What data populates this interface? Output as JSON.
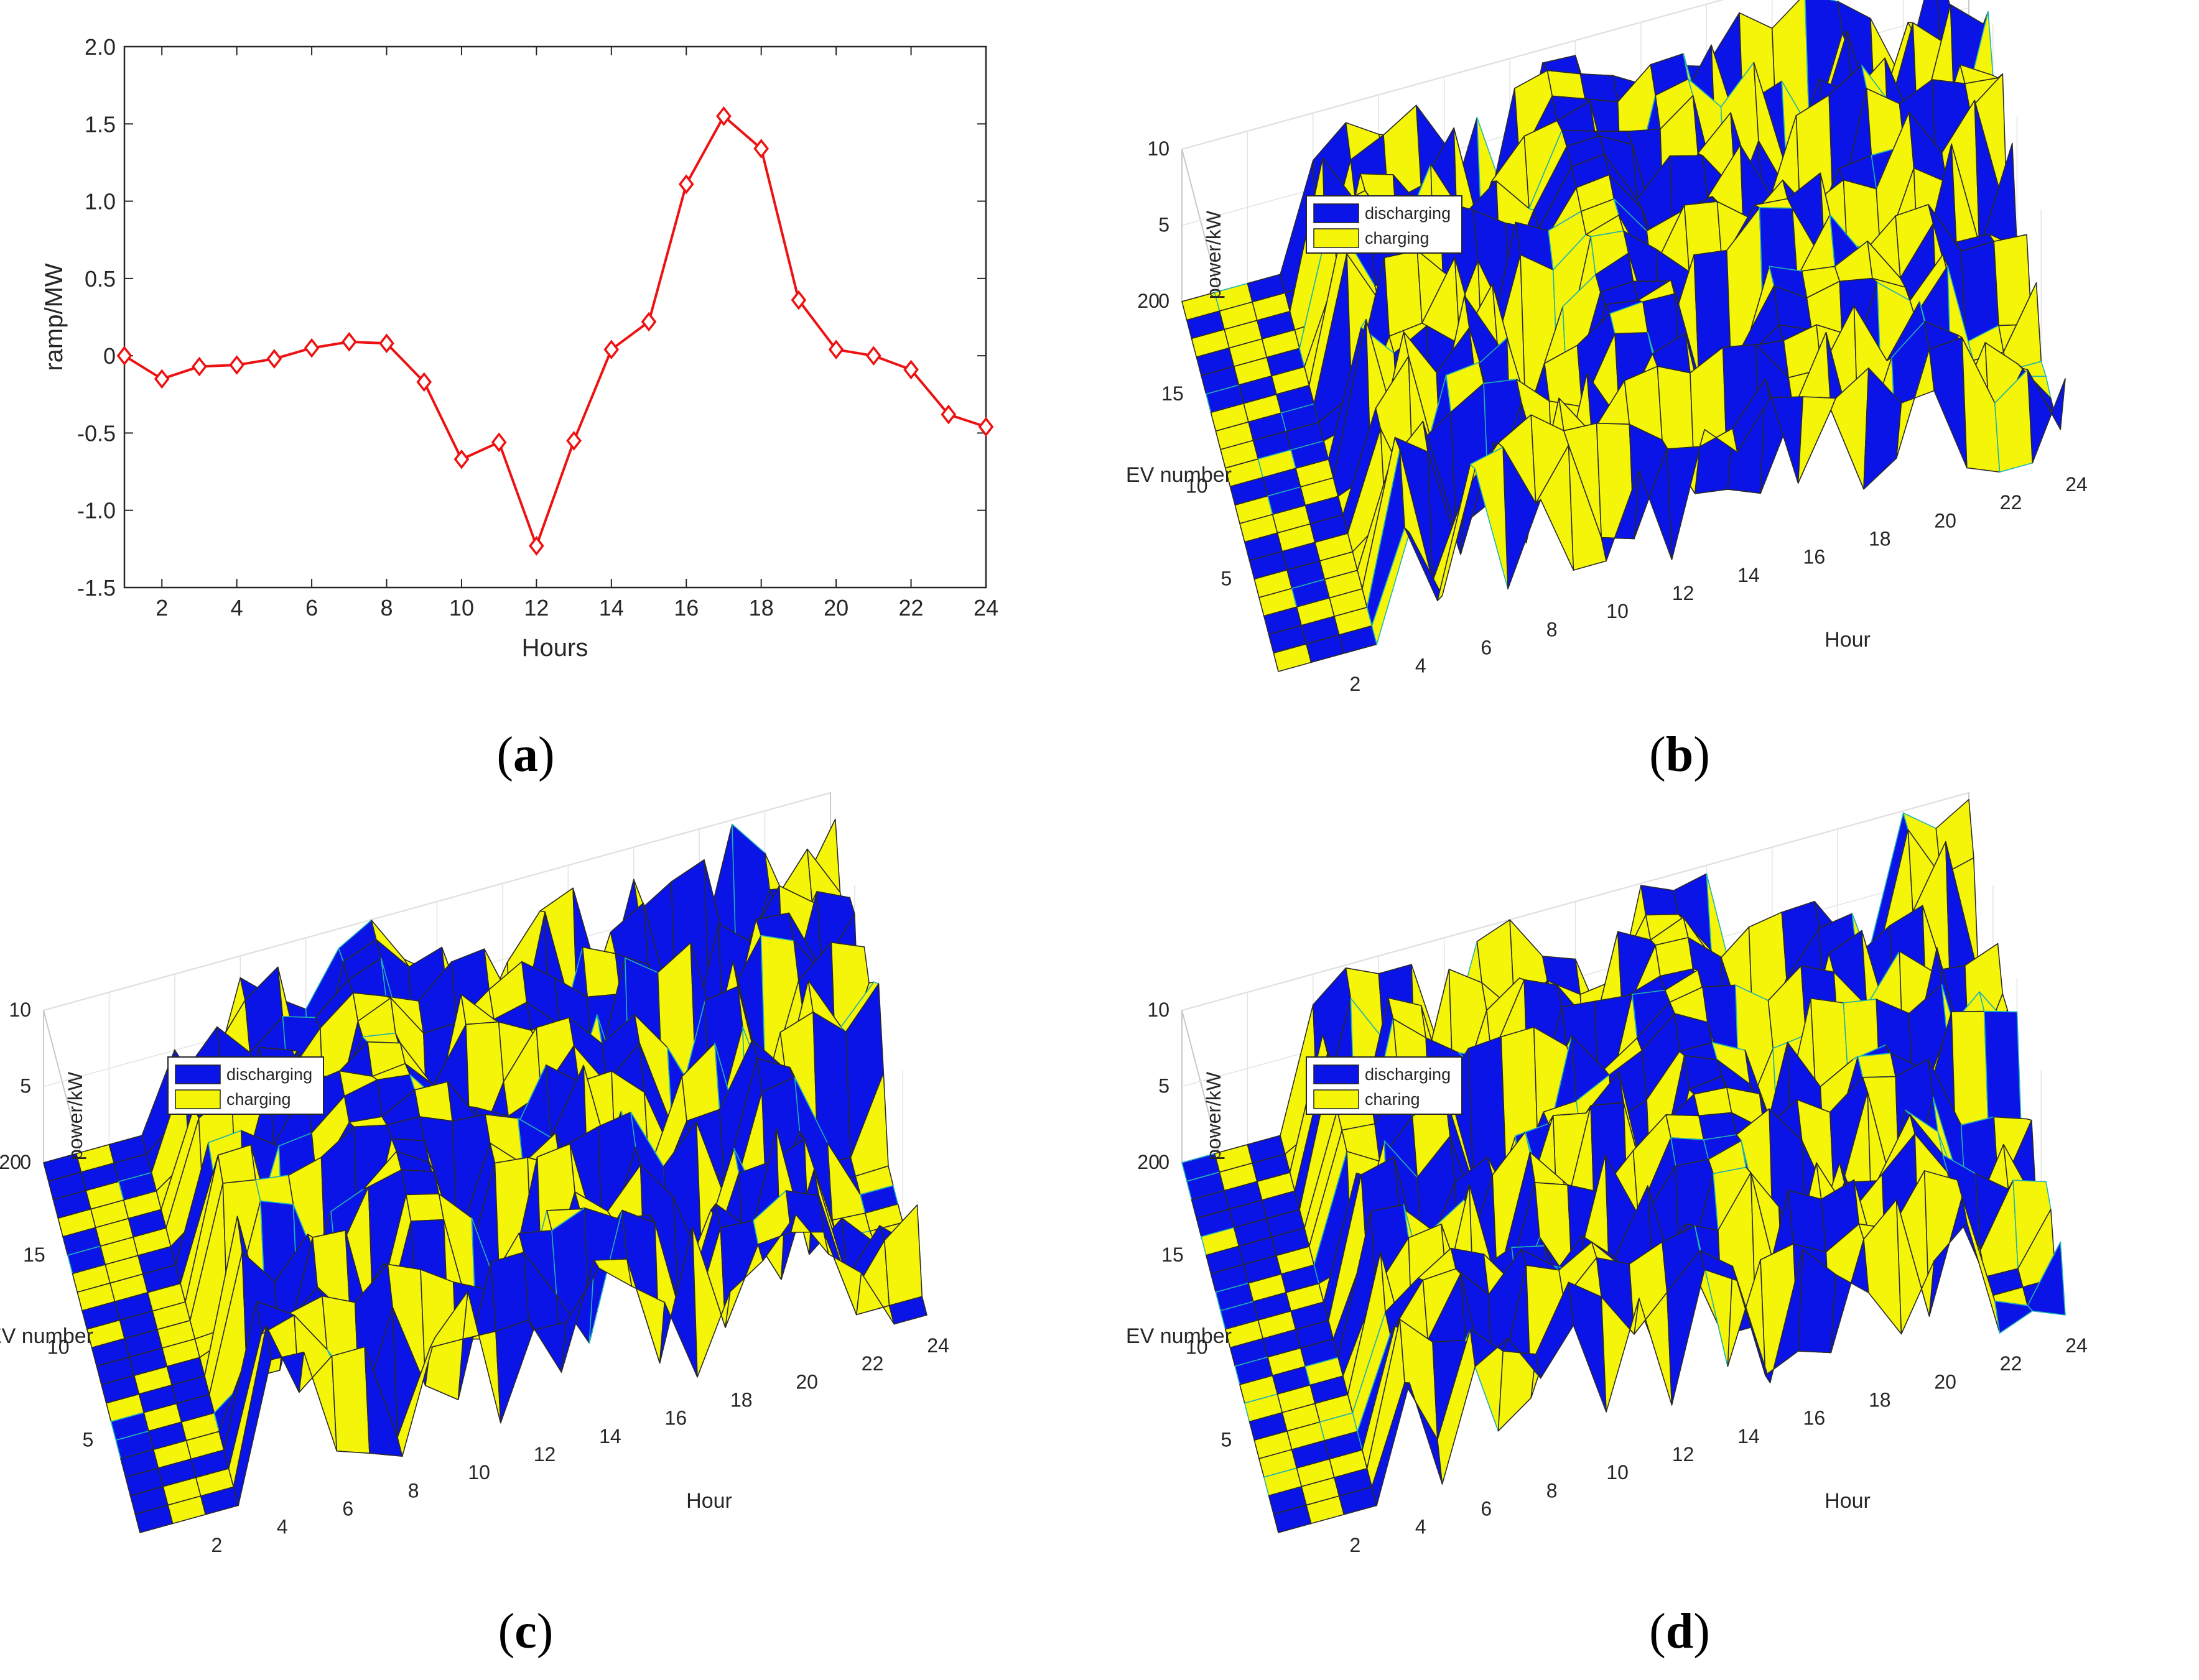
{
  "panel_a": {
    "caption": "(a)",
    "caption_letter": "a",
    "xlabel": "Hours",
    "ylabel": "ramp/MW"
  },
  "panel_b": {
    "caption": "(b)",
    "caption_letter": "b",
    "zlabel": "power/kW",
    "ylabel": "EV number",
    "xlabel": "Hour",
    "legend": [
      "discharging",
      "charging"
    ]
  },
  "panel_c": {
    "caption": "(c)",
    "caption_letter": "c",
    "zlabel": "power/kW",
    "ylabel": "EV number",
    "xlabel": "Hour",
    "legend": [
      "discharging",
      "charging"
    ]
  },
  "panel_d": {
    "caption": "(d)",
    "caption_letter": "d",
    "zlabel": "power/kW",
    "ylabel": "EV number",
    "xlabel": "Hour",
    "legend": [
      "discharging",
      "charing"
    ]
  },
  "colors": {
    "line": "#ee1111",
    "discharging": "#0a14e6",
    "charging": "#f5f50a",
    "edge": "#1fb5b5"
  },
  "chart_data": [
    {
      "type": "line",
      "x": [
        1,
        2,
        3,
        4,
        5,
        6,
        7,
        8,
        9,
        10,
        11,
        12,
        13,
        14,
        15,
        16,
        17,
        18,
        19,
        20,
        21,
        22,
        23,
        24
      ],
      "values": [
        0.0,
        -0.15,
        -0.07,
        -0.06,
        -0.02,
        0.05,
        0.09,
        0.08,
        -0.17,
        -0.67,
        -0.56,
        -1.23,
        -0.55,
        0.04,
        0.22,
        1.11,
        1.55,
        1.34,
        0.36,
        0.04,
        0.0,
        -0.09,
        -0.38,
        -0.46
      ],
      "xticks": [
        "2",
        "4",
        "6",
        "8",
        "10",
        "12",
        "14",
        "16",
        "18",
        "20",
        "22",
        "24"
      ],
      "yticks": [
        "-1.5",
        "-1.0",
        "-0.5",
        "0",
        "0.5",
        "1.0",
        "1.5",
        "2.0"
      ],
      "xlim": [
        1,
        24
      ],
      "ylim": [
        -1.5,
        2.0
      ],
      "xlabel": "Hours",
      "ylabel": "ramp/MW",
      "marker": "diamond"
    },
    {
      "type": "surface3d",
      "x_hours": 24,
      "y_evs": 20,
      "xticks": [
        "2",
        "4",
        "6",
        "8",
        "10",
        "12",
        "14",
        "16",
        "18",
        "20",
        "22",
        "24"
      ],
      "yticks": [
        "5",
        "10",
        "15",
        "20"
      ],
      "zticks": [
        "0",
        "5",
        "10"
      ],
      "zlim": [
        0,
        10
      ],
      "xlabel": "Hour",
      "ylabel": "EV number",
      "zlabel": "power/kW",
      "legend": [
        "discharging",
        "charging"
      ]
    },
    {
      "type": "surface3d",
      "x_hours": 24,
      "y_evs": 20,
      "xticks": [
        "2",
        "4",
        "6",
        "8",
        "10",
        "12",
        "14",
        "16",
        "18",
        "20",
        "22",
        "24"
      ],
      "yticks": [
        "5",
        "10",
        "15",
        "20"
      ],
      "zticks": [
        "0",
        "5",
        "10"
      ],
      "zlim": [
        0,
        10
      ],
      "xlabel": "Hour",
      "ylabel": "EV number",
      "zlabel": "power/kW",
      "legend": [
        "discharging",
        "charging"
      ]
    },
    {
      "type": "surface3d",
      "x_hours": 24,
      "y_evs": 20,
      "xticks": [
        "2",
        "4",
        "6",
        "8",
        "10",
        "12",
        "14",
        "16",
        "18",
        "20",
        "22",
        "24"
      ],
      "yticks": [
        "5",
        "10",
        "15",
        "20"
      ],
      "zticks": [
        "0",
        "5",
        "10"
      ],
      "zlim": [
        0,
        10
      ],
      "xlabel": "Hour",
      "ylabel": "EV number",
      "zlabel": "power/kW",
      "legend": [
        "discharging",
        "charing"
      ]
    }
  ]
}
